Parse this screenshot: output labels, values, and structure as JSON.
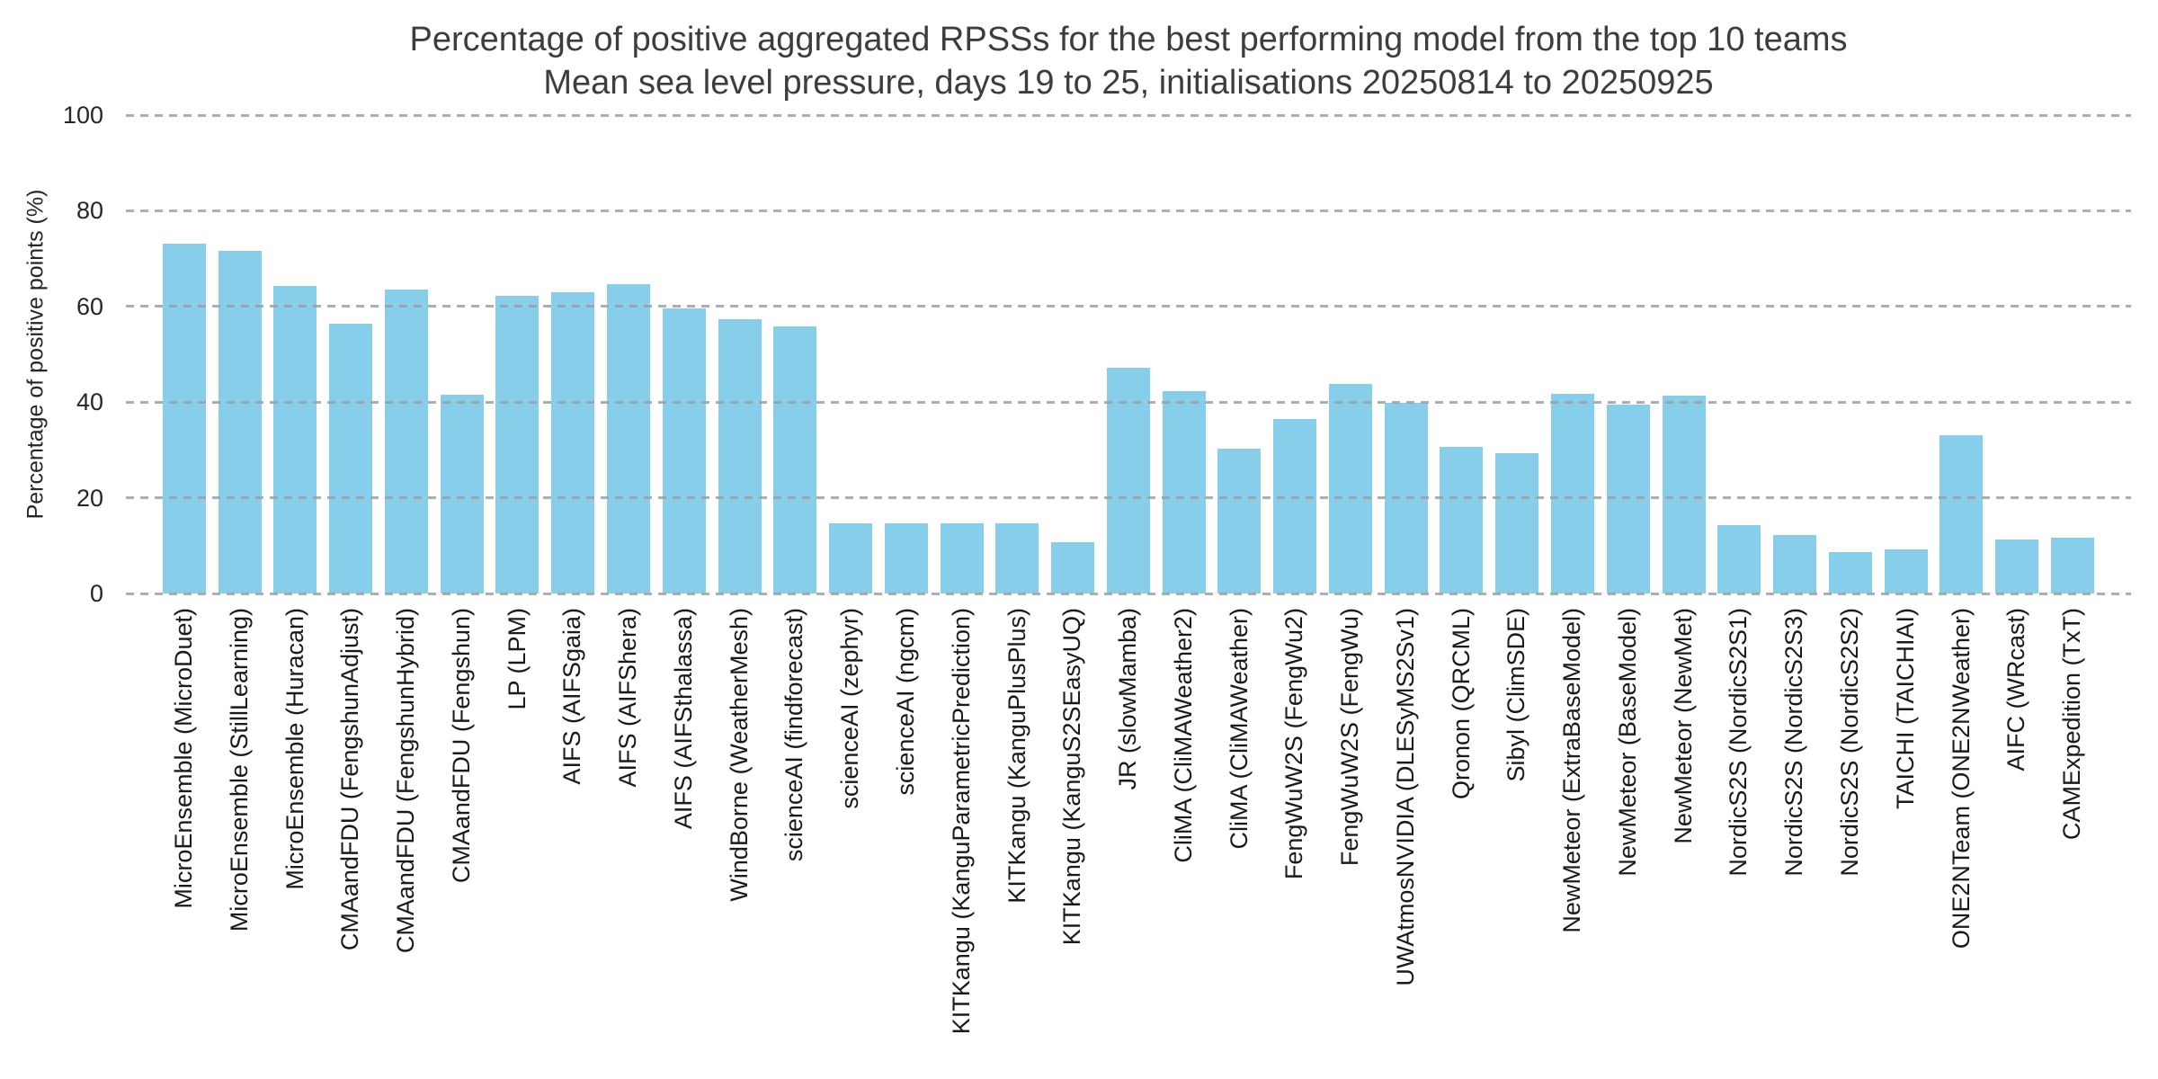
{
  "chart_data": {
    "type": "bar",
    "title": "Percentage of positive aggregated RPSSs for the best performing model from the top 10 teams",
    "subtitle": "Mean sea level pressure, days 19 to 25, initialisations 20250814 to 20250925",
    "xlabel": "",
    "ylabel": "Percentage of positive points (%)",
    "ylim": [
      0,
      100
    ],
    "yticks": [
      0,
      20,
      40,
      60,
      80,
      100
    ],
    "grid": "horizontal dashed gridlines, drawn above bars",
    "legend": "none",
    "categories": [
      "MicroEnsemble (MicroDuet)",
      "MicroEnsemble (StillLearning)",
      "MicroEnsemble (Huracan)",
      "CMAandFDU (FengshunAdjust)",
      "CMAandFDU (FengshunHybrid)",
      "CMAandFDU (Fengshun)",
      "LP (LPM)",
      "AIFS (AIFSgaia)",
      "AIFS (AIFShera)",
      "AIFS (AIFSthalassa)",
      "WindBorne (WeatherMesh)",
      "scienceAI (findforecast)",
      "scienceAI (zephyr)",
      "scienceAI (ngcm)",
      "KITKangu (KanguParametricPrediction)",
      "KITKangu (KanguPlusPlus)",
      "KITKangu (KanguS2SEasyUQ)",
      "JR (slowMamba)",
      "CliMA (CliMAWeather2)",
      "CliMA (CliMAWeather)",
      "FengWuW2S (FengWu2)",
      "FengWuW2S (FengWu)",
      "UWAtmosNVIDIA (DLESyMS2Sv1)",
      "Qronon (QRCML)",
      "Sibyl (ClimSDE)",
      "NewMeteor (ExtraBaseModel)",
      "NewMeteor (BaseModel)",
      "NewMeteor (NewMet)",
      "NordicS2S (NordicS2S1)",
      "NordicS2S (NordicS2S3)",
      "NordicS2S (NordicS2S2)",
      "TAICHI (TAICHIAI)",
      "ONE2NTeam (ONE2NWeather)",
      "AIFC (WRcast)",
      "CAMExpedition (TxT)"
    ],
    "values": [
      73.2,
      71.7,
      64.3,
      56.3,
      63.5,
      41.5,
      62.2,
      63.0,
      64.6,
      59.5,
      57.3,
      55.8,
      14.6,
      14.6,
      14.6,
      14.6,
      10.7,
      47.2,
      42.3,
      30.2,
      36.4,
      43.8,
      39.9,
      30.6,
      29.4,
      41.7,
      39.4,
      41.4,
      14.2,
      12.3,
      8.6,
      9.2,
      33.1,
      11.2,
      11.6
    ],
    "colors": {
      "bar": "#87CEEB",
      "gridline": "#9f9f9f",
      "title_text": "#3d3d3d",
      "tick_text": "#262626"
    }
  }
}
